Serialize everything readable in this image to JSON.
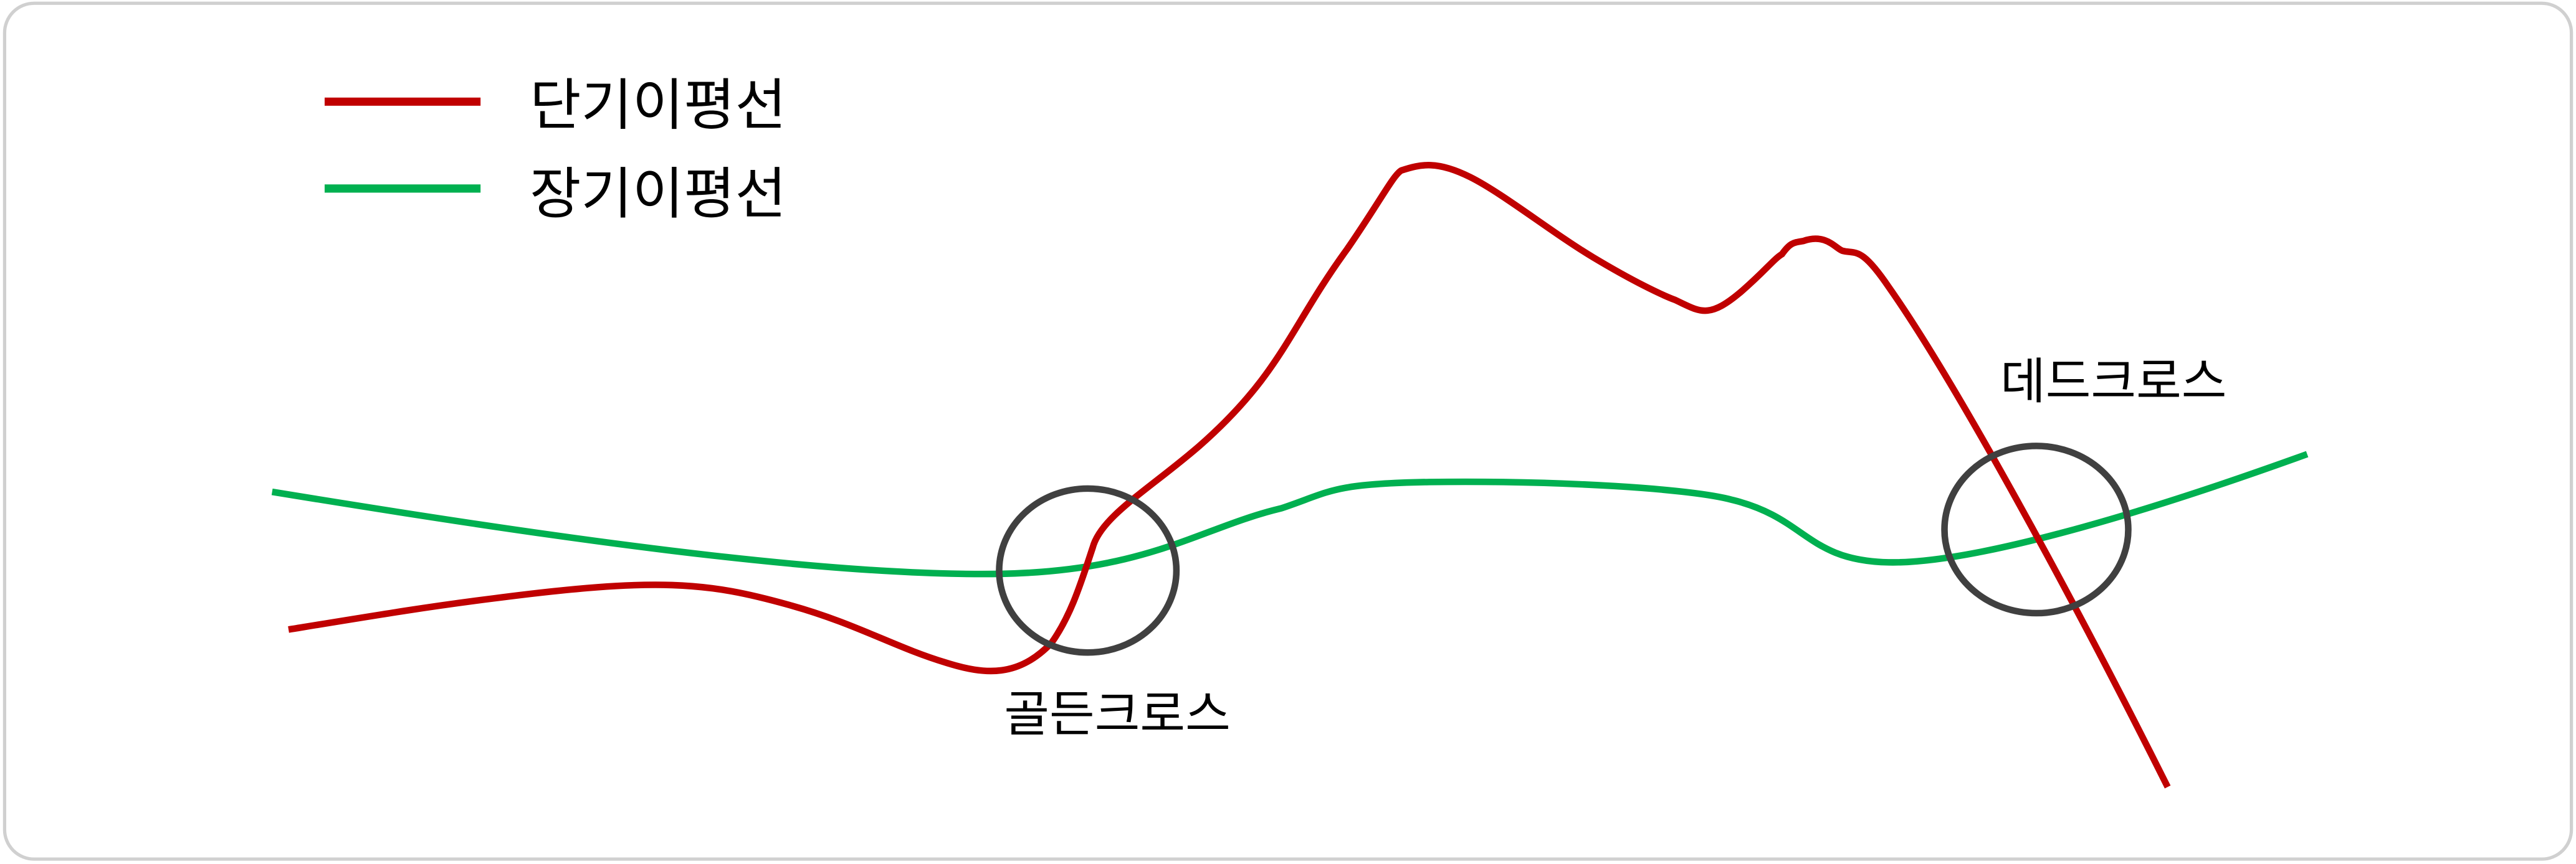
{
  "legend": {
    "items": [
      {
        "label": "단기이평선",
        "color": "#c00000"
      },
      {
        "label": "장기이평선",
        "color": "#00b050"
      }
    ]
  },
  "annotations": {
    "golden_cross": "골든크로스",
    "dead_cross": "데드크로스",
    "circle_color": "#404040"
  },
  "colors": {
    "border": "#d0d0d0",
    "background": "#ffffff"
  }
}
